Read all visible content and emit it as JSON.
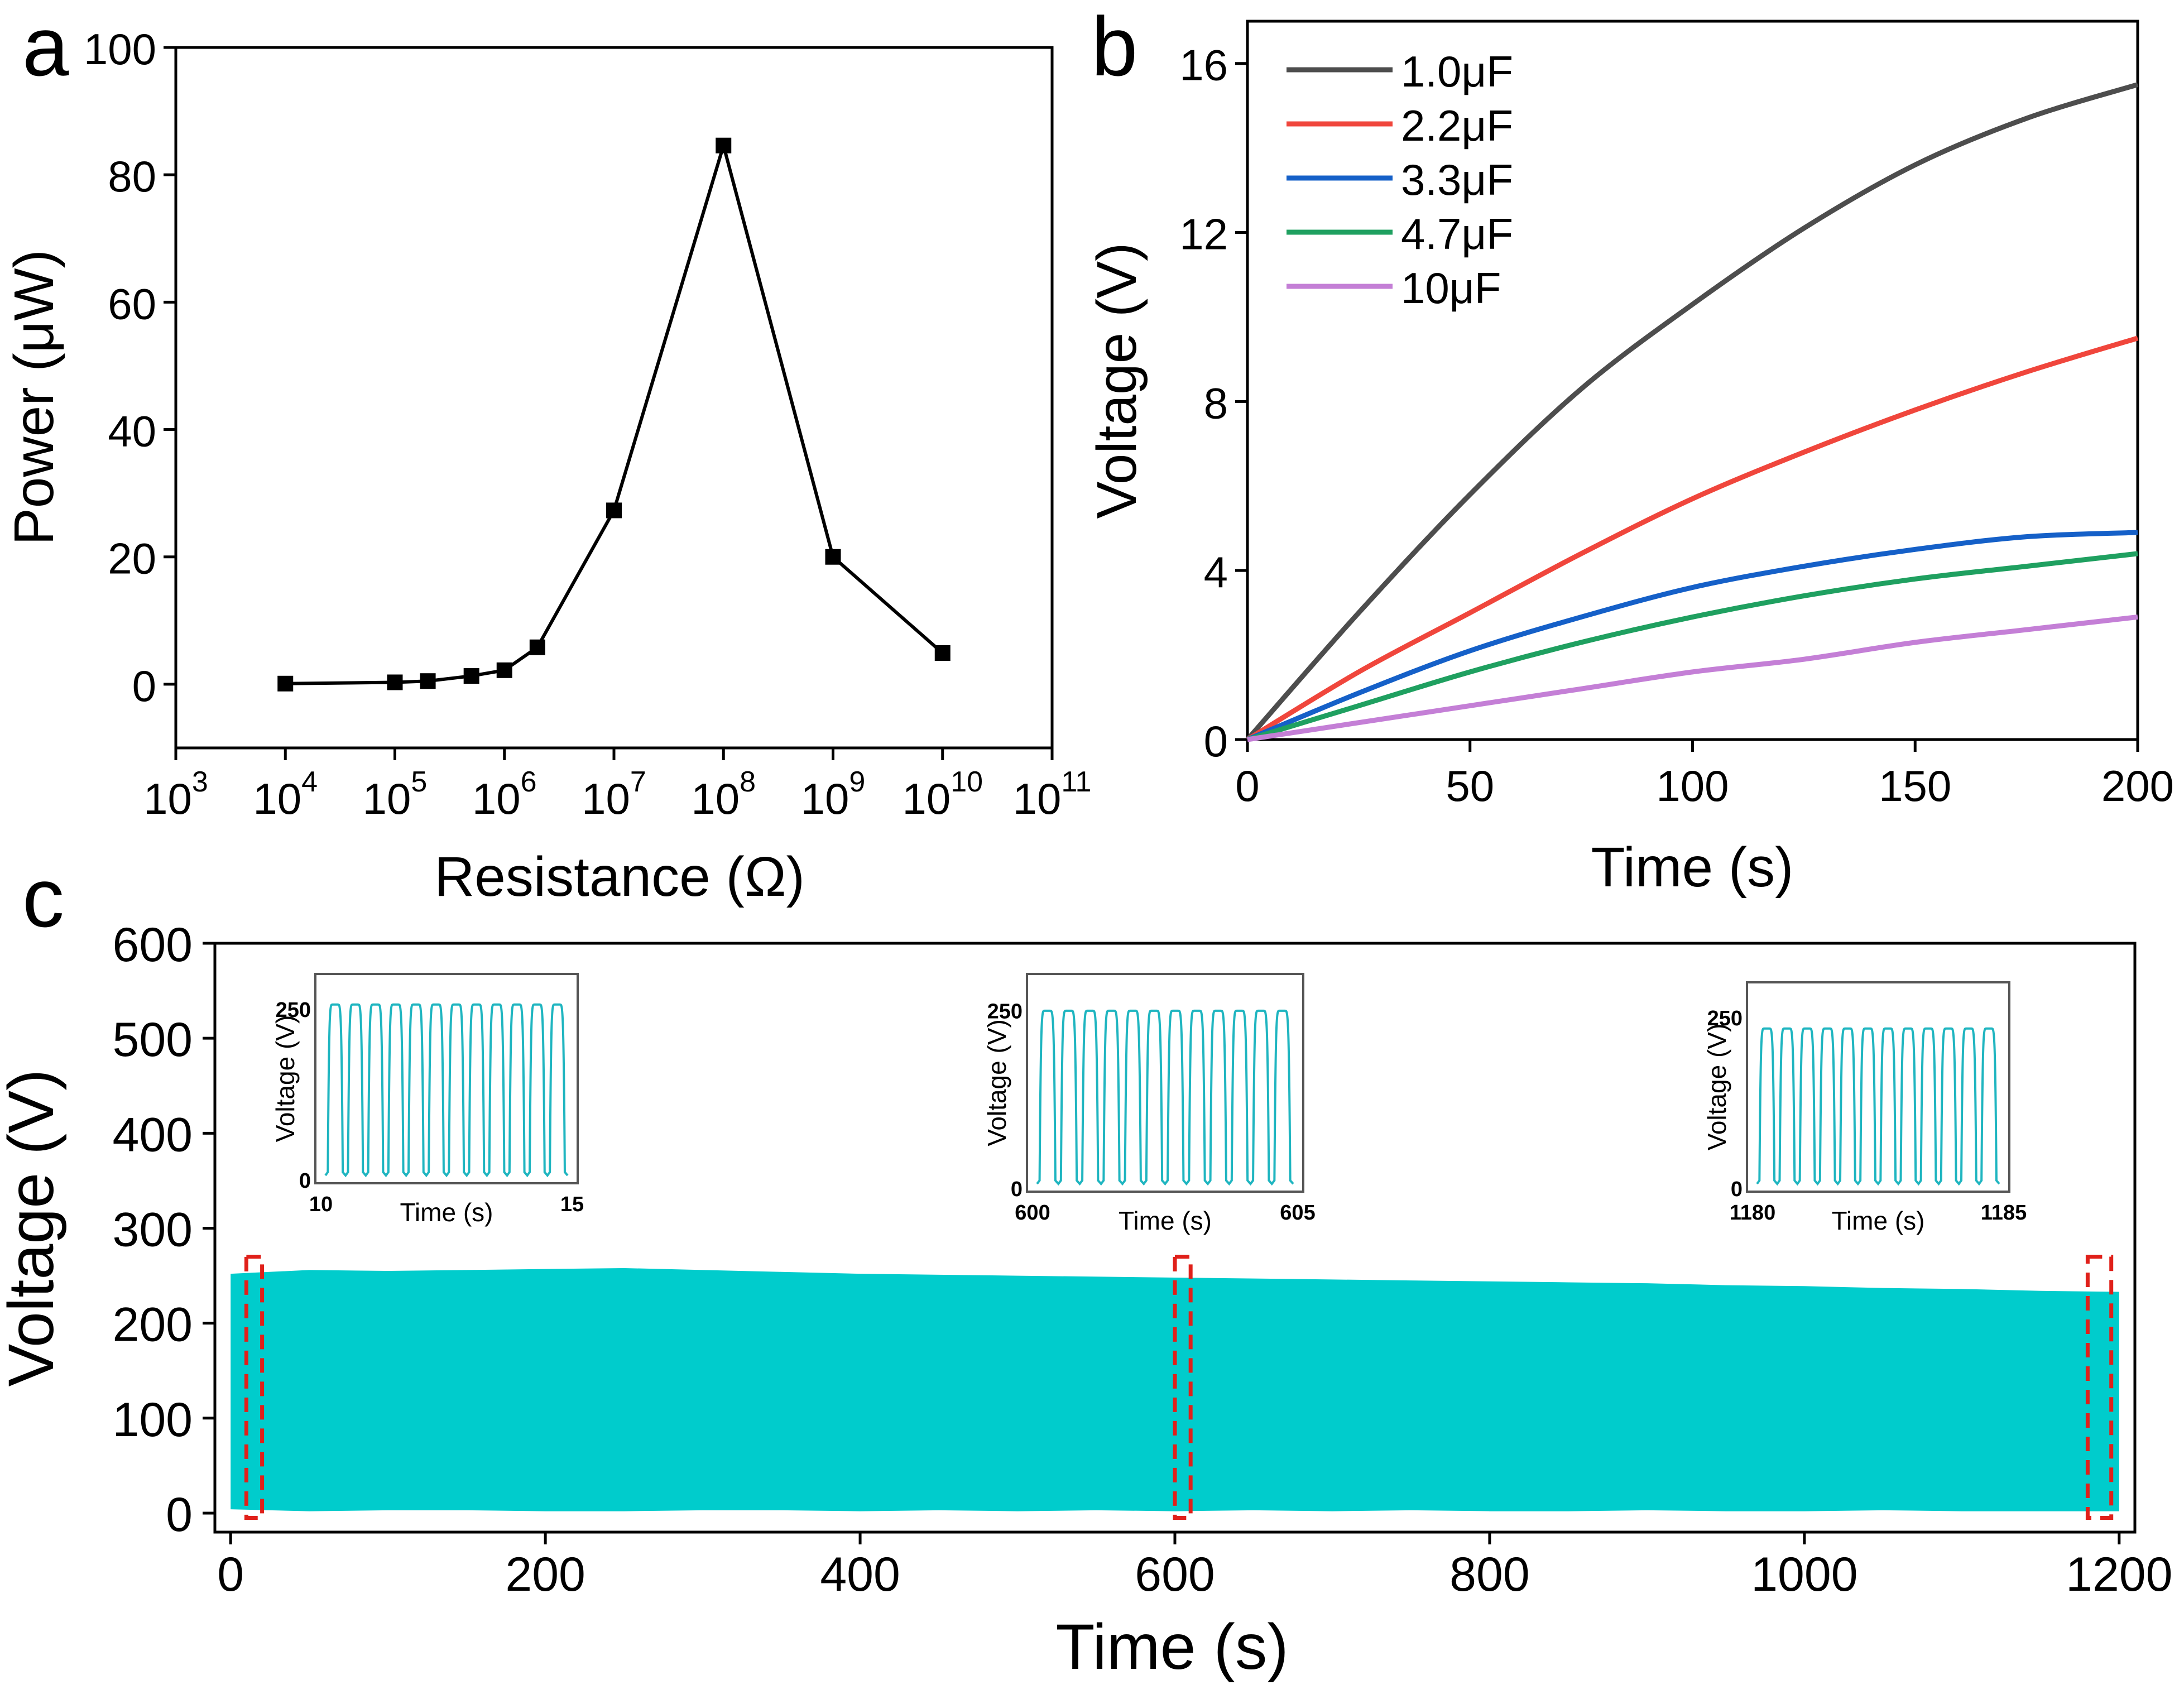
{
  "figure": {
    "panel_labels": [
      "a",
      "b",
      "c"
    ]
  },
  "chart_data": [
    {
      "panel": "a",
      "type": "line",
      "xscale": "log10",
      "xlabel": "Resistance (Ω)",
      "ylabel": "Power (μW)",
      "xlim_exp": [
        3,
        11
      ],
      "xtick_exponents": [
        3,
        4,
        5,
        6,
        7,
        8,
        9,
        10,
        11
      ],
      "xtick_base": "10",
      "ylim": [
        -10,
        100
      ],
      "yticks": [
        0,
        20,
        40,
        60,
        80,
        100
      ],
      "series": [
        {
          "name": "Power",
          "color": "#000000",
          "marker": "square",
          "x": [
            10000,
            100000,
            200000,
            500000,
            1000000,
            2000000,
            10000000,
            100000000,
            1000000000,
            10000000000
          ],
          "y": [
            0.1,
            0.3,
            0.5,
            1.3,
            2.2,
            5.8,
            27.3,
            84.6,
            20.0,
            4.9
          ]
        }
      ]
    },
    {
      "panel": "b",
      "type": "line",
      "xlabel": "Time (s)",
      "ylabel": "Voltage (V)",
      "xlim": [
        0,
        200
      ],
      "xticks": [
        0,
        50,
        100,
        150,
        200
      ],
      "ylim": [
        0,
        17
      ],
      "yticks": [
        0,
        4,
        8,
        12,
        16
      ],
      "legend": "top-left",
      "series": [
        {
          "name": "1.0μF",
          "color": "#4d4d4d",
          "x": [
            0,
            25,
            50,
            75,
            100,
            125,
            150,
            175,
            200
          ],
          "y": [
            0,
            3.0,
            5.8,
            8.3,
            10.3,
            12.1,
            13.6,
            14.7,
            15.5
          ]
        },
        {
          "name": "2.2μF",
          "color": "#f0463c",
          "x": [
            0,
            25,
            50,
            75,
            100,
            125,
            150,
            175,
            200
          ],
          "y": [
            0,
            1.6,
            3.0,
            4.4,
            5.7,
            6.8,
            7.8,
            8.7,
            9.5
          ]
        },
        {
          "name": "3.3μF",
          "color": "#1560c8",
          "x": [
            0,
            25,
            50,
            75,
            100,
            125,
            150,
            175,
            200
          ],
          "y": [
            0,
            1.1,
            2.1,
            2.9,
            3.6,
            4.1,
            4.5,
            4.8,
            4.9
          ]
        },
        {
          "name": "4.7μF",
          "color": "#1fa060",
          "x": [
            0,
            25,
            50,
            75,
            100,
            125,
            150,
            175,
            200
          ],
          "y": [
            0,
            0.8,
            1.6,
            2.3,
            2.9,
            3.4,
            3.8,
            4.1,
            4.4
          ]
        },
        {
          "name": "10μF",
          "color": "#c47fd6",
          "x": [
            0,
            25,
            50,
            75,
            100,
            125,
            150,
            175,
            200
          ],
          "y": [
            0,
            0.4,
            0.8,
            1.2,
            1.6,
            1.9,
            2.3,
            2.6,
            2.9
          ]
        }
      ]
    },
    {
      "panel": "c",
      "type": "area",
      "xlabel": "Time (s)",
      "ylabel": "Voltage (V)",
      "xlim": [
        -10,
        1210
      ],
      "xticks": [
        0,
        200,
        400,
        600,
        800,
        1000,
        1200
      ],
      "ylim": [
        -20,
        600
      ],
      "yticks": [
        0,
        100,
        200,
        300,
        400,
        500,
        600
      ],
      "color": "#00cccc",
      "series": [
        {
          "name": "Voltage envelope",
          "x": [
            0,
            50,
            100,
            150,
            200,
            250,
            300,
            350,
            400,
            450,
            500,
            550,
            600,
            650,
            700,
            750,
            800,
            850,
            900,
            950,
            1000,
            1050,
            1100,
            1150,
            1200
          ],
          "upper": [
            252,
            256,
            255,
            256,
            257,
            258,
            256,
            254,
            252,
            251,
            250,
            249,
            248,
            247,
            246,
            245,
            244,
            243,
            242,
            240,
            239,
            237,
            236,
            234,
            233
          ],
          "lower": [
            4,
            2,
            3,
            3,
            2,
            2,
            3,
            3,
            2,
            3,
            2,
            3,
            2,
            3,
            2,
            3,
            2,
            2,
            3,
            2,
            2,
            3,
            2,
            2,
            2
          ]
        }
      ],
      "highlight_windows": [
        [
          10,
          20
        ],
        [
          600,
          610
        ],
        [
          1180,
          1195
        ]
      ],
      "insets": [
        {
          "xlabel": "Time (s)",
          "ylabel": "Voltage (V)",
          "xstart": "10",
          "xend": "15",
          "ymin": "0",
          "ymax": "250",
          "peaks": 12,
          "peak_level": 255
        },
        {
          "xlabel": "Time (s)",
          "ylabel": "Voltage (V)",
          "xstart": "600",
          "xend": "605",
          "ymin": "0",
          "ymax": "250",
          "peaks": 12,
          "peak_level": 248
        },
        {
          "xlabel": "Time (s)",
          "ylabel": "Voltage (V)",
          "xstart": "1180",
          "xend": "1185",
          "ymin": "0",
          "ymax": "250",
          "peaks": 12,
          "peak_level": 232
        }
      ]
    }
  ]
}
